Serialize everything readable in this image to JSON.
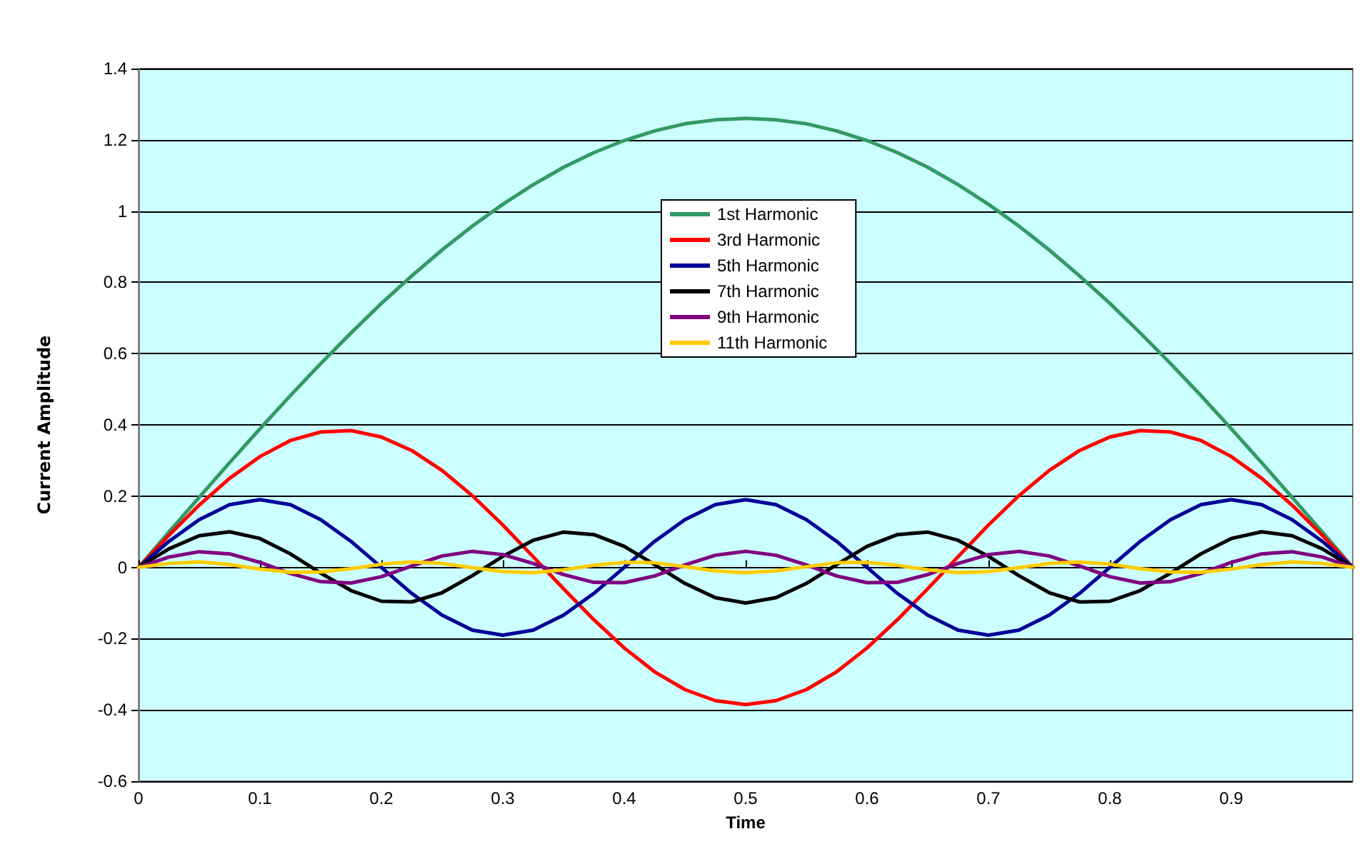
{
  "chart_data": {
    "type": "line",
    "xlabel": "Time",
    "ylabel": "Current Amplitude",
    "x": [
      0,
      0.025,
      0.05,
      0.075,
      0.1,
      0.125,
      0.15,
      0.175,
      0.2,
      0.225,
      0.25,
      0.275,
      0.3,
      0.325,
      0.35,
      0.375,
      0.4,
      0.425,
      0.45,
      0.475,
      0.5,
      0.525,
      0.55,
      0.575,
      0.6,
      0.625,
      0.65,
      0.675,
      0.7,
      0.725,
      0.75,
      0.775,
      0.8,
      0.825,
      0.85,
      0.875,
      0.9,
      0.925,
      0.95,
      0.975,
      1
    ],
    "series": [
      {
        "name": "1st Harmonic",
        "color": "#339966",
        "values": [
          0,
          0.099,
          0.197,
          0.294,
          0.389,
          0.482,
          0.572,
          0.658,
          0.741,
          0.818,
          0.891,
          0.958,
          1.019,
          1.074,
          1.123,
          1.164,
          1.198,
          1.225,
          1.245,
          1.256,
          1.26,
          1.256,
          1.245,
          1.225,
          1.198,
          1.164,
          1.123,
          1.074,
          1.019,
          0.958,
          0.891,
          0.818,
          0.741,
          0.658,
          0.572,
          0.482,
          0.389,
          0.294,
          0.197,
          0.099,
          0
        ]
      },
      {
        "name": "3rd Harmonic",
        "color": "#ff0000",
        "values": [
          0,
          0.09,
          0.175,
          0.25,
          0.311,
          0.356,
          0.38,
          0.384,
          0.366,
          0.328,
          0.272,
          0.201,
          0.119,
          0.03,
          -0.06,
          -0.147,
          -0.226,
          -0.293,
          -0.343,
          -0.374,
          -0.385,
          -0.374,
          -0.343,
          -0.293,
          -0.226,
          -0.147,
          -0.06,
          0.03,
          0.119,
          0.201,
          0.272,
          0.328,
          0.366,
          0.384,
          0.38,
          0.356,
          0.311,
          0.25,
          0.175,
          0.09,
          0
        ]
      },
      {
        "name": "5th Harmonic",
        "color": "#000099",
        "values": [
          0,
          0.073,
          0.134,
          0.176,
          0.19,
          0.176,
          0.134,
          0.073,
          0,
          -0.073,
          -0.134,
          -0.176,
          -0.19,
          -0.176,
          -0.134,
          -0.073,
          0,
          0.073,
          0.134,
          0.176,
          0.19,
          0.176,
          0.134,
          0.073,
          0,
          -0.073,
          -0.134,
          -0.176,
          -0.19,
          -0.176,
          -0.134,
          -0.073,
          0,
          0.073,
          0.134,
          0.176,
          0.19,
          0.176,
          0.134,
          0.073,
          0
        ]
      },
      {
        "name": "7th Harmonic",
        "color": "#000000",
        "values": [
          0,
          0.052,
          0.089,
          0.1,
          0.081,
          0.038,
          -0.016,
          -0.065,
          -0.095,
          -0.097,
          -0.071,
          -0.023,
          0.031,
          0.076,
          0.099,
          0.092,
          0.059,
          0.008,
          -0.045,
          -0.085,
          -0.1,
          -0.085,
          -0.045,
          0.008,
          0.059,
          0.092,
          0.099,
          0.076,
          0.031,
          -0.023,
          -0.071,
          -0.097,
          -0.095,
          -0.065,
          -0.016,
          0.038,
          0.081,
          0.1,
          0.089,
          0.052,
          0
        ]
      },
      {
        "name": "9th Harmonic",
        "color": "#800080",
        "values": [
          0,
          0.029,
          0.044,
          0.038,
          0.014,
          -0.017,
          -0.04,
          -0.044,
          -0.026,
          0.004,
          0.032,
          0.045,
          0.036,
          0.011,
          -0.02,
          -0.042,
          -0.043,
          -0.024,
          0.007,
          0.034,
          0.045,
          0.034,
          0.007,
          -0.024,
          -0.043,
          -0.042,
          -0.02,
          0.011,
          0.036,
          0.045,
          0.032,
          0.004,
          -0.026,
          -0.044,
          -0.04,
          -0.017,
          0.014,
          0.038,
          0.044,
          0.029,
          0
        ]
      },
      {
        "name": "11th Harmonic",
        "color": "#ffcc00",
        "values": [
          0,
          0.011,
          0.015,
          0.008,
          -0.005,
          -0.014,
          -0.013,
          -0.004,
          0.009,
          0.015,
          0.011,
          -0.001,
          -0.012,
          -0.015,
          -0.007,
          0.006,
          0.014,
          0.013,
          0.002,
          -0.01,
          -0.015,
          -0.01,
          0.002,
          0.013,
          0.014,
          0.006,
          -0.007,
          -0.015,
          -0.012,
          -0.001,
          0.011,
          0.015,
          0.009,
          -0.004,
          -0.013,
          -0.014,
          -0.005,
          0.008,
          0.015,
          0.011,
          0
        ]
      }
    ],
    "xlim": [
      0,
      1
    ],
    "xticks": [
      0,
      0.1,
      0.2,
      0.3,
      0.4,
      0.5,
      0.6,
      0.7,
      0.8,
      0.9
    ],
    "ylim": [
      -0.6,
      1.4
    ],
    "yticks": [
      -0.6,
      -0.4,
      -0.2,
      0,
      0.2,
      0.4,
      0.6,
      0.8,
      1,
      1.2,
      1.4
    ],
    "grid": "y",
    "legend": "top",
    "marker": "none",
    "line_style": "solid"
  }
}
